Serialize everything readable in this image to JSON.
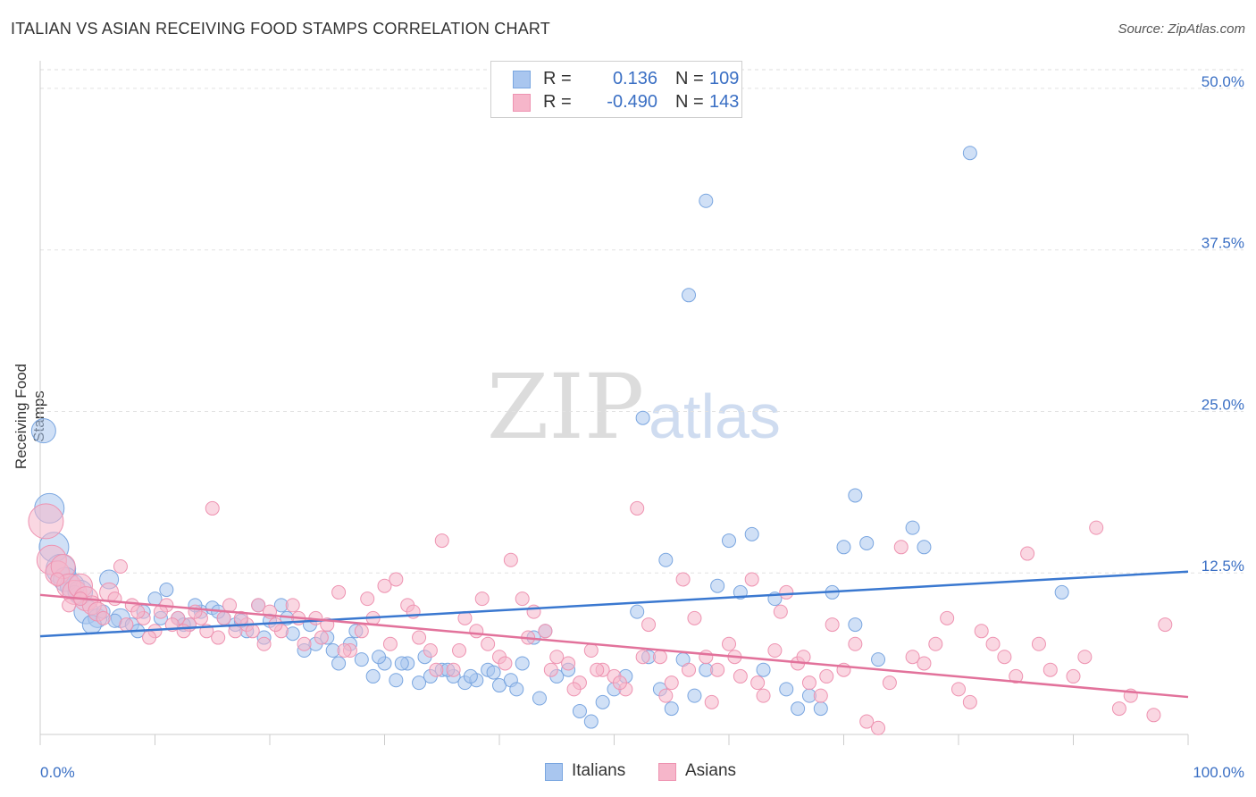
{
  "title": "ITALIAN VS ASIAN RECEIVING FOOD STAMPS CORRELATION CHART",
  "source": "Source: ZipAtlas.com",
  "watermark": {
    "zip": "ZIP",
    "atlas": "atlas"
  },
  "legend": {
    "r_label": "R =",
    "n_label": "N =",
    "italians": {
      "r": "0.136",
      "n": "109"
    },
    "asians": {
      "r": "-0.490",
      "n": "143"
    }
  },
  "colors": {
    "italians_fill": "#a9c6ef",
    "italians_stroke": "#7aa6e0",
    "italians_line": "#3a78d0",
    "asians_fill": "#f6b6ca",
    "asians_stroke": "#ee93b1",
    "asians_line": "#e2729b",
    "tick_label": "#3a6fc4"
  },
  "chart_data": {
    "type": "scatter",
    "title": "ITALIAN VS ASIAN RECEIVING FOOD STAMPS CORRELATION CHART",
    "xlabel": "",
    "ylabel": "Receiving Food Stamps",
    "xlim": [
      0,
      100
    ],
    "ylim": [
      0,
      52
    ],
    "x_tick_labels": [
      "0.0%",
      "100.0%"
    ],
    "y_ticks": [
      12.5,
      25.0,
      37.5,
      50.0
    ],
    "y_tick_labels": [
      "12.5%",
      "25.0%",
      "37.5%",
      "50.0%"
    ],
    "grid": true,
    "legend_placement": "top-center",
    "series": [
      {
        "name": "Italians",
        "r": 0.136,
        "n": 109,
        "trend": [
          [
            0,
            7.6
          ],
          [
            100,
            12.6
          ]
        ],
        "points": [
          [
            0.3,
            23.5,
            2
          ],
          [
            0.8,
            17.5,
            2.5
          ],
          [
            1.2,
            14.5,
            2.5
          ],
          [
            1.8,
            12.8,
            2.5
          ],
          [
            2.2,
            12,
            2
          ],
          [
            2.8,
            11.5,
            2
          ],
          [
            3.5,
            11,
            2
          ],
          [
            4,
            9.5,
            2
          ],
          [
            5,
            9,
            1.5
          ],
          [
            6,
            12,
            1.5
          ],
          [
            4.5,
            8.5,
            1.5
          ],
          [
            7,
            9,
            1.5
          ],
          [
            8,
            8.5,
            1
          ],
          [
            9,
            9.5,
            1
          ],
          [
            10,
            10.5,
            1
          ],
          [
            11,
            11.2,
            1
          ],
          [
            12,
            9,
            1
          ],
          [
            13,
            8.5,
            1
          ],
          [
            14,
            9.5,
            1
          ],
          [
            15,
            9.8,
            1
          ],
          [
            16,
            9,
            1
          ],
          [
            17,
            8.5,
            1
          ],
          [
            18,
            8,
            1
          ],
          [
            19,
            10,
            1
          ],
          [
            20,
            8.8,
            1
          ],
          [
            21,
            10,
            1
          ],
          [
            22,
            7.8,
            1
          ],
          [
            23,
            6.5,
            1
          ],
          [
            24,
            7,
            1
          ],
          [
            25,
            7.5,
            1
          ],
          [
            26,
            5.5,
            1
          ],
          [
            27,
            7,
            1
          ],
          [
            28,
            5.8,
            1
          ],
          [
            29,
            4.5,
            1
          ],
          [
            30,
            5.5,
            1
          ],
          [
            31,
            4.2,
            1
          ],
          [
            32,
            5.5,
            1
          ],
          [
            33,
            4,
            1
          ],
          [
            34,
            4.5,
            1
          ],
          [
            35,
            5,
            1
          ],
          [
            36,
            4.5,
            1
          ],
          [
            37,
            4,
            1
          ],
          [
            38,
            4.2,
            1
          ],
          [
            39,
            5,
            1
          ],
          [
            40,
            3.8,
            1
          ],
          [
            41,
            4.2,
            1
          ],
          [
            42,
            5.5,
            1
          ],
          [
            43,
            7.5,
            1
          ],
          [
            44,
            8,
            1
          ],
          [
            45,
            4.5,
            1
          ],
          [
            46,
            5,
            1
          ],
          [
            47,
            1.8,
            1
          ],
          [
            48,
            1,
            1
          ],
          [
            49,
            2.5,
            1
          ],
          [
            50,
            3.5,
            1
          ],
          [
            51,
            4.5,
            1
          ],
          [
            52,
            9.5,
            1
          ],
          [
            53,
            6,
            1
          ],
          [
            54,
            3.5,
            1
          ],
          [
            55,
            2,
            1
          ],
          [
            56,
            5.8,
            1
          ],
          [
            57,
            3,
            1
          ],
          [
            58,
            5,
            1
          ],
          [
            52.5,
            24.5,
            1
          ],
          [
            54.5,
            13.5,
            1
          ],
          [
            56.5,
            34,
            1
          ],
          [
            58,
            41.3,
            1
          ],
          [
            59,
            11.5,
            1
          ],
          [
            60,
            15,
            1
          ],
          [
            61,
            11,
            1
          ],
          [
            62,
            15.5,
            1
          ],
          [
            63,
            5,
            1
          ],
          [
            64,
            10.5,
            1
          ],
          [
            65,
            3.5,
            1
          ],
          [
            66,
            2,
            1
          ],
          [
            67,
            3,
            1
          ],
          [
            68,
            2,
            1
          ],
          [
            69,
            11,
            1
          ],
          [
            70,
            14.5,
            1
          ],
          [
            71,
            18.5,
            1
          ],
          [
            72,
            14.8,
            1
          ],
          [
            73,
            5.8,
            1
          ],
          [
            81,
            45,
            1
          ],
          [
            76,
            16,
            1
          ],
          [
            77,
            14.5,
            1
          ],
          [
            89,
            11,
            1
          ],
          [
            71,
            8.5,
            1
          ],
          [
            3,
            11,
            1
          ],
          [
            5.5,
            9.5,
            1
          ],
          [
            6.5,
            8.8,
            1
          ],
          [
            8.5,
            8,
            1
          ],
          [
            10.5,
            9,
            1
          ],
          [
            13.5,
            10,
            1
          ],
          [
            15.5,
            9.5,
            1
          ],
          [
            17.5,
            8.8,
            1
          ],
          [
            19.5,
            7.5,
            1
          ],
          [
            21.5,
            9,
            1
          ],
          [
            23.5,
            8.5,
            1
          ],
          [
            25.5,
            6.5,
            1
          ],
          [
            27.5,
            8,
            1
          ],
          [
            29.5,
            6,
            1
          ],
          [
            31.5,
            5.5,
            1
          ],
          [
            33.5,
            6,
            1
          ],
          [
            35.5,
            5,
            1
          ],
          [
            37.5,
            4.5,
            1
          ],
          [
            39.5,
            4.8,
            1
          ],
          [
            41.5,
            3.5,
            1
          ],
          [
            43.5,
            2.8,
            1
          ],
          [
            12.5,
            8.5,
            1
          ]
        ]
      },
      {
        "name": "Asians",
        "r": -0.49,
        "n": 143,
        "trend": [
          [
            0,
            10.8
          ],
          [
            100,
            2.9
          ]
        ],
        "points": [
          [
            0.5,
            16.5,
            3
          ],
          [
            1,
            13.5,
            2.5
          ],
          [
            1.5,
            12.5,
            2
          ],
          [
            2,
            13,
            2
          ],
          [
            2.5,
            11.5,
            2
          ],
          [
            3,
            11,
            2
          ],
          [
            3.5,
            11.5,
            2
          ],
          [
            4,
            10.5,
            2
          ],
          [
            4.5,
            10,
            1.5
          ],
          [
            5,
            9.5,
            1.5
          ],
          [
            6,
            11,
            1.5
          ],
          [
            7,
            13,
            1
          ],
          [
            8,
            10,
            1
          ],
          [
            9,
            9,
            1
          ],
          [
            10,
            8,
            1
          ],
          [
            11,
            10,
            1
          ],
          [
            12,
            9,
            1
          ],
          [
            13,
            8.5,
            1
          ],
          [
            14,
            9,
            1
          ],
          [
            15,
            17.5,
            1
          ],
          [
            16,
            9,
            1
          ],
          [
            17,
            8,
            1
          ],
          [
            18,
            8.5,
            1
          ],
          [
            19,
            10,
            1
          ],
          [
            20,
            9.5,
            1
          ],
          [
            21,
            8,
            1
          ],
          [
            22,
            10,
            1
          ],
          [
            23,
            7,
            1
          ],
          [
            24,
            9,
            1
          ],
          [
            25,
            8.5,
            1
          ],
          [
            26,
            11,
            1
          ],
          [
            27,
            6.5,
            1
          ],
          [
            28,
            8,
            1
          ],
          [
            29,
            9,
            1
          ],
          [
            30,
            11.5,
            1
          ],
          [
            31,
            12,
            1
          ],
          [
            32,
            10,
            1
          ],
          [
            33,
            7.5,
            1
          ],
          [
            34,
            6.5,
            1
          ],
          [
            35,
            15,
            1
          ],
          [
            36,
            5,
            1
          ],
          [
            37,
            9,
            1
          ],
          [
            38,
            8,
            1
          ],
          [
            39,
            7,
            1
          ],
          [
            40,
            6,
            1
          ],
          [
            41,
            13.5,
            1
          ],
          [
            42,
            10.5,
            1
          ],
          [
            43,
            9.5,
            1
          ],
          [
            44,
            8,
            1
          ],
          [
            45,
            6,
            1
          ],
          [
            46,
            5.5,
            1
          ],
          [
            47,
            4,
            1
          ],
          [
            48,
            6.5,
            1
          ],
          [
            49,
            5,
            1
          ],
          [
            50,
            4.5,
            1
          ],
          [
            51,
            3.5,
            1
          ],
          [
            52,
            17.5,
            1
          ],
          [
            53,
            8.5,
            1
          ],
          [
            54,
            6,
            1
          ],
          [
            55,
            4,
            1
          ],
          [
            56,
            12,
            1
          ],
          [
            57,
            9,
            1
          ],
          [
            58,
            6,
            1
          ],
          [
            59,
            5,
            1
          ],
          [
            60,
            7,
            1
          ],
          [
            61,
            4.5,
            1
          ],
          [
            62,
            12,
            1
          ],
          [
            63,
            3,
            1
          ],
          [
            64,
            6.5,
            1
          ],
          [
            65,
            11,
            1
          ],
          [
            66,
            5.5,
            1
          ],
          [
            67,
            4,
            1
          ],
          [
            68,
            3,
            1
          ],
          [
            69,
            8.5,
            1
          ],
          [
            70,
            5,
            1
          ],
          [
            71,
            7,
            1
          ],
          [
            72,
            1,
            1
          ],
          [
            73,
            0.5,
            1
          ],
          [
            74,
            4,
            1
          ],
          [
            75,
            14.5,
            1
          ],
          [
            76,
            6,
            1
          ],
          [
            77,
            5.5,
            1
          ],
          [
            78,
            7,
            1
          ],
          [
            79,
            9,
            1
          ],
          [
            80,
            3.5,
            1
          ],
          [
            81,
            2.5,
            1
          ],
          [
            82,
            8,
            1
          ],
          [
            83,
            7,
            1
          ],
          [
            84,
            6,
            1
          ],
          [
            85,
            4.5,
            1
          ],
          [
            86,
            14,
            1
          ],
          [
            87,
            7,
            1
          ],
          [
            88,
            5,
            1
          ],
          [
            90,
            4.5,
            1
          ],
          [
            91,
            6,
            1
          ],
          [
            92,
            16,
            1
          ],
          [
            94,
            2,
            1
          ],
          [
            95,
            3,
            1
          ],
          [
            97,
            1.5,
            1
          ],
          [
            98,
            8.5,
            1
          ],
          [
            1.5,
            12,
            1
          ],
          [
            2.5,
            10,
            1
          ],
          [
            3.5,
            10.5,
            1
          ],
          [
            5.5,
            9,
            1
          ],
          [
            6.5,
            10.5,
            1
          ],
          [
            7.5,
            8.5,
            1
          ],
          [
            8.5,
            9.5,
            1
          ],
          [
            9.5,
            7.5,
            1
          ],
          [
            10.5,
            9.5,
            1
          ],
          [
            11.5,
            8.5,
            1
          ],
          [
            12.5,
            8,
            1
          ],
          [
            13.5,
            9.5,
            1
          ],
          [
            14.5,
            8,
            1
          ],
          [
            15.5,
            7.5,
            1
          ],
          [
            16.5,
            10,
            1
          ],
          [
            17.5,
            9,
            1
          ],
          [
            18.5,
            8,
            1
          ],
          [
            19.5,
            7,
            1
          ],
          [
            20.5,
            8.5,
            1
          ],
          [
            22.5,
            9,
            1
          ],
          [
            24.5,
            7.5,
            1
          ],
          [
            26.5,
            6.5,
            1
          ],
          [
            28.5,
            10.5,
            1
          ],
          [
            30.5,
            7,
            1
          ],
          [
            32.5,
            9.5,
            1
          ],
          [
            34.5,
            5,
            1
          ],
          [
            36.5,
            6.5,
            1
          ],
          [
            38.5,
            10.5,
            1
          ],
          [
            40.5,
            5.5,
            1
          ],
          [
            42.5,
            7.5,
            1
          ],
          [
            44.5,
            5,
            1
          ],
          [
            46.5,
            3.5,
            1
          ],
          [
            48.5,
            5,
            1
          ],
          [
            50.5,
            4,
            1
          ],
          [
            52.5,
            6,
            1
          ],
          [
            54.5,
            3,
            1
          ],
          [
            56.5,
            5,
            1
          ],
          [
            58.5,
            2.5,
            1
          ],
          [
            60.5,
            6,
            1
          ],
          [
            62.5,
            4,
            1
          ],
          [
            64.5,
            9.5,
            1
          ],
          [
            66.5,
            6,
            1
          ],
          [
            68.5,
            4.5,
            1
          ]
        ]
      }
    ]
  }
}
